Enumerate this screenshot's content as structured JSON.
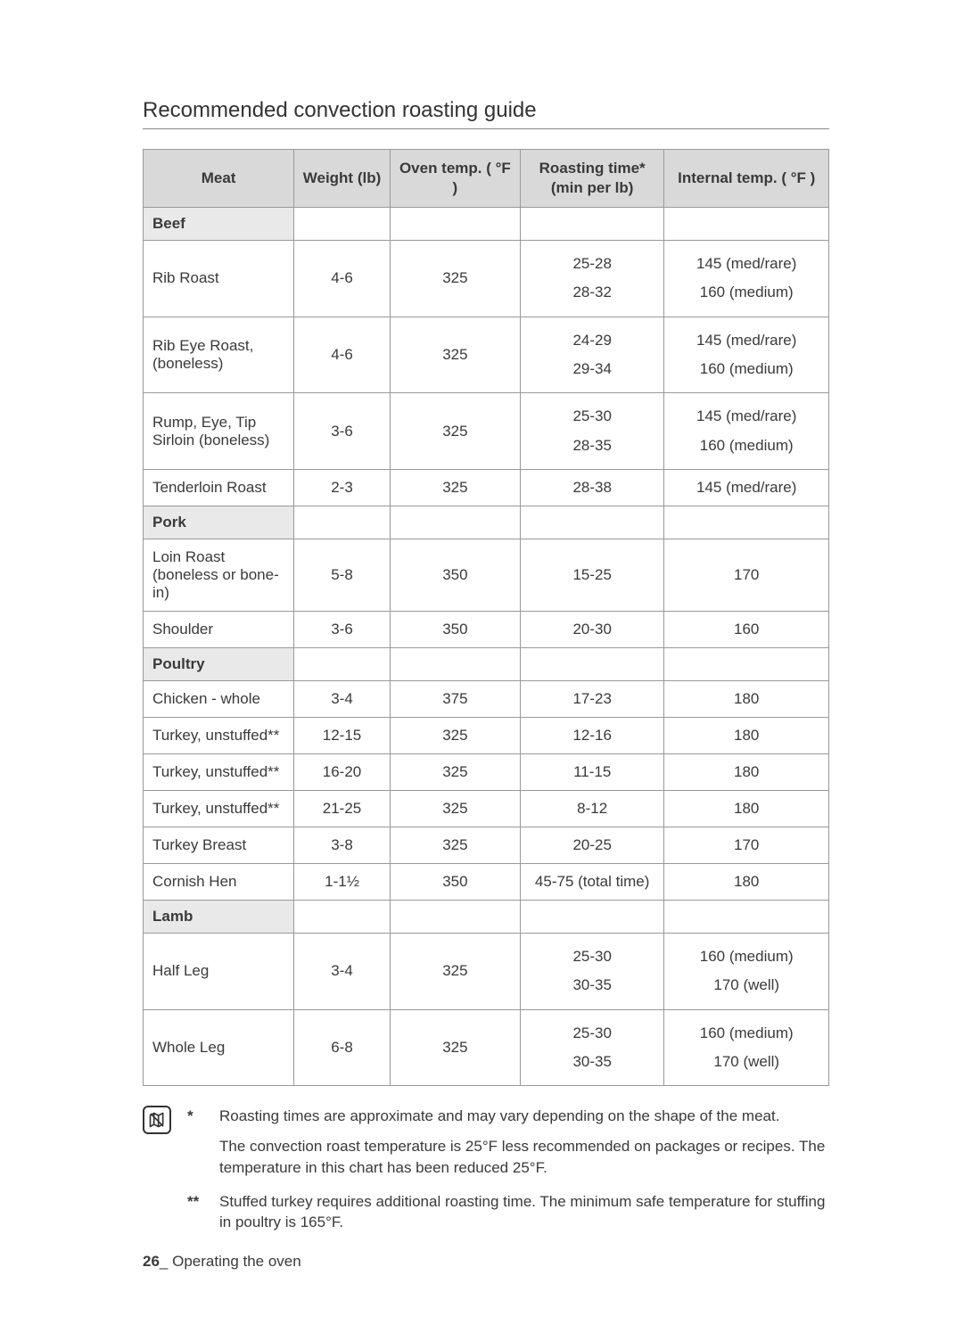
{
  "title": "Recommended convection roasting guide",
  "columns": {
    "meat": "Meat",
    "weight": "Weight (lb)",
    "oven": "Oven temp. ( °F )",
    "time": "Roasting time*\n(min per lb)",
    "internal": "Internal temp. ( °F )"
  },
  "sections": {
    "beef": "Beef",
    "pork": "Pork",
    "poultry": "Poultry",
    "lamb": "Lamb"
  },
  "rows": {
    "beef": [
      {
        "meat": "Rib Roast",
        "weight": "4-6",
        "oven": "325",
        "time": "25-28\n28-32",
        "internal": "145 (med/rare)\n160 (medium)"
      },
      {
        "meat": "Rib Eye Roast, (boneless)",
        "weight": "4-6",
        "oven": "325",
        "time": "24-29\n29-34",
        "internal": "145 (med/rare)\n160 (medium)"
      },
      {
        "meat": "Rump, Eye, Tip Sirloin (boneless)",
        "weight": "3-6",
        "oven": "325",
        "time": "25-30\n28-35",
        "internal": "145 (med/rare)\n160 (medium)"
      },
      {
        "meat": "Tenderloin Roast",
        "weight": "2-3",
        "oven": "325",
        "time": "28-38",
        "internal": "145 (med/rare)"
      }
    ],
    "pork": [
      {
        "meat": "Loin Roast (boneless or bone-in)",
        "weight": "5-8",
        "oven": "350",
        "time": "15-25",
        "internal": "170"
      },
      {
        "meat": "Shoulder",
        "weight": "3-6",
        "oven": "350",
        "time": "20-30",
        "internal": "160"
      }
    ],
    "poultry": [
      {
        "meat": "Chicken - whole",
        "weight": "3-4",
        "oven": "375",
        "time": "17-23",
        "internal": "180"
      },
      {
        "meat": "Turkey, unstuffed**",
        "weight": "12-15",
        "oven": "325",
        "time": "12-16",
        "internal": "180"
      },
      {
        "meat": "Turkey, unstuffed**",
        "weight": "16-20",
        "oven": "325",
        "time": "11-15",
        "internal": "180"
      },
      {
        "meat": "Turkey, unstuffed**",
        "weight": "21-25",
        "oven": "325",
        "time": "8-12",
        "internal": "180"
      },
      {
        "meat": "Turkey Breast",
        "weight": "3-8",
        "oven": "325",
        "time": "20-25",
        "internal": "170"
      },
      {
        "meat": "Cornish Hen",
        "weight": "1-1½",
        "oven": "350",
        "time": "45-75 (total time)",
        "internal": "180"
      }
    ],
    "lamb": [
      {
        "meat": "Half Leg",
        "weight": "3-4",
        "oven": "325",
        "time": "25-30\n30-35",
        "internal": "160 (medium)\n170 (well)"
      },
      {
        "meat": "Whole Leg",
        "weight": "6-8",
        "oven": "325",
        "time": "25-30\n30-35",
        "internal": "160 (medium)\n170 (well)"
      }
    ]
  },
  "notes": {
    "mark1": "*",
    "text1a": "Roasting times are approximate and may vary depending on the shape of the meat.",
    "text1b": "The convection roast temperature is 25°F less recommended on packages or recipes. The temperature in this chart has been reduced 25°F.",
    "mark2": "**",
    "text2": "Stuffed turkey requires additional roasting time. The minimum safe temperature for stuffing in poultry is 165°F."
  },
  "footer": {
    "page": "26",
    "sep": "_",
    "label": " Operating the oven"
  }
}
